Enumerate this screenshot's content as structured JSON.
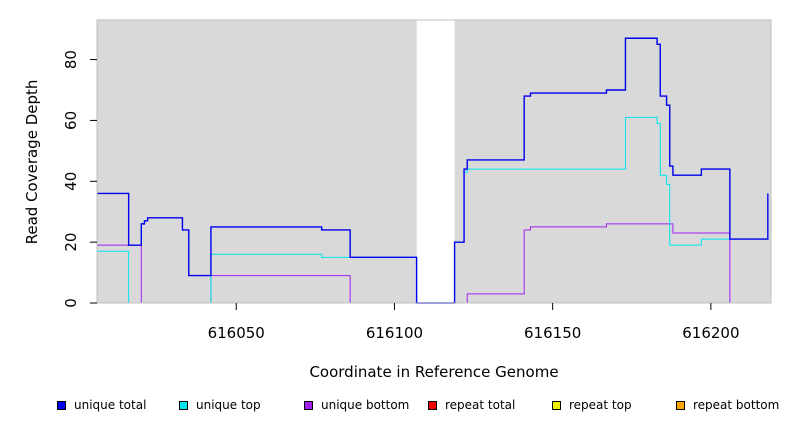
{
  "chart_data": {
    "type": "line",
    "title": "",
    "xlabel": "Coordinate in Reference Genome",
    "ylabel": "Read Coverage Depth",
    "xlim": [
      616006,
      616219
    ],
    "ylim": [
      0,
      93
    ],
    "x_ticks": [
      616050,
      616100,
      616150,
      616200
    ],
    "x_tick_labels": [
      "616050",
      "616100",
      "616150",
      "616200"
    ],
    "y_ticks": [
      0,
      20,
      40,
      60,
      80
    ],
    "y_tick_labels": [
      "0",
      "20",
      "40",
      "60",
      "80"
    ],
    "background": "#d9d9d9",
    "gap_region": [
      616107,
      616119
    ],
    "legend_position": "bottom",
    "series": [
      {
        "name": "unique total",
        "color": "#0000ee",
        "points": [
          [
            616006,
            36
          ],
          [
            616016,
            36
          ],
          [
            616016,
            19
          ],
          [
            616020,
            19
          ],
          [
            616020,
            26
          ],
          [
            616021,
            26
          ],
          [
            616021,
            27
          ],
          [
            616022,
            27
          ],
          [
            616022,
            28
          ],
          [
            616033,
            28
          ],
          [
            616033,
            24
          ],
          [
            616035,
            24
          ],
          [
            616035,
            9
          ],
          [
            616042,
            9
          ],
          [
            616042,
            25
          ],
          [
            616077,
            25
          ],
          [
            616077,
            24
          ],
          [
            616086,
            24
          ],
          [
            616086,
            15
          ],
          [
            616107,
            15
          ],
          [
            616107,
            0
          ],
          [
            616119,
            0
          ],
          [
            616119,
            20
          ],
          [
            616122,
            20
          ],
          [
            616122,
            44
          ],
          [
            616123,
            44
          ],
          [
            616123,
            47
          ],
          [
            616141,
            47
          ],
          [
            616141,
            68
          ],
          [
            616143,
            68
          ],
          [
            616143,
            69
          ],
          [
            616167,
            69
          ],
          [
            616167,
            70
          ],
          [
            616173,
            70
          ],
          [
            616173,
            87
          ],
          [
            616183,
            87
          ],
          [
            616183,
            85
          ],
          [
            616184,
            85
          ],
          [
            616184,
            68
          ],
          [
            616186,
            68
          ],
          [
            616186,
            65
          ],
          [
            616187,
            65
          ],
          [
            616187,
            45
          ],
          [
            616188,
            45
          ],
          [
            616188,
            42
          ],
          [
            616197,
            42
          ],
          [
            616197,
            44
          ],
          [
            616206,
            44
          ],
          [
            616206,
            21
          ],
          [
            616218,
            21
          ],
          [
            616218,
            36
          ]
        ]
      },
      {
        "name": "unique top",
        "color": "#00e5ee",
        "points": [
          [
            616006,
            17
          ],
          [
            616016,
            17
          ],
          [
            616016,
            0
          ],
          [
            616042,
            0
          ],
          [
            616042,
            16
          ],
          [
            616077,
            16
          ],
          [
            616077,
            15
          ],
          [
            616107,
            15
          ],
          [
            616107,
            0
          ],
          [
            616119,
            0
          ],
          [
            616119,
            20
          ],
          [
            616122,
            20
          ],
          [
            616122,
            43
          ],
          [
            616123,
            43
          ],
          [
            616123,
            44
          ],
          [
            616173,
            44
          ],
          [
            616173,
            61
          ],
          [
            616183,
            61
          ],
          [
            616183,
            59
          ],
          [
            616184,
            59
          ],
          [
            616184,
            42
          ],
          [
            616186,
            42
          ],
          [
            616186,
            39
          ],
          [
            616187,
            39
          ],
          [
            616187,
            19
          ],
          [
            616197,
            19
          ],
          [
            616197,
            21
          ],
          [
            616206,
            21
          ],
          [
            616218,
            21
          ]
        ]
      },
      {
        "name": "unique bottom",
        "color": "#a020f0",
        "points": [
          [
            616006,
            19
          ],
          [
            616016,
            19
          ],
          [
            616016,
            19
          ],
          [
            616020,
            19
          ],
          [
            616020,
            0
          ],
          [
            616042,
            0
          ],
          [
            616042,
            9
          ],
          [
            616086,
            9
          ],
          [
            616086,
            0
          ],
          [
            616123,
            0
          ],
          [
            616123,
            3
          ],
          [
            616141,
            3
          ],
          [
            616141,
            24
          ],
          [
            616143,
            24
          ],
          [
            616143,
            25
          ],
          [
            616167,
            25
          ],
          [
            616167,
            26
          ],
          [
            616188,
            26
          ],
          [
            616188,
            23
          ],
          [
            616206,
            23
          ],
          [
            616206,
            0
          ],
          [
            616219,
            0
          ]
        ]
      },
      {
        "name": "repeat total",
        "color": "#ee0000",
        "points": [
          [
            616006,
            0
          ],
          [
            616219,
            0
          ]
        ]
      },
      {
        "name": "repeat top",
        "color": "#eeee00",
        "points": [
          [
            616006,
            0
          ],
          [
            616219,
            0
          ]
        ]
      },
      {
        "name": "repeat bottom",
        "color": "#ffa500",
        "points": [
          [
            616006,
            0
          ],
          [
            616219,
            0
          ]
        ]
      }
    ]
  }
}
